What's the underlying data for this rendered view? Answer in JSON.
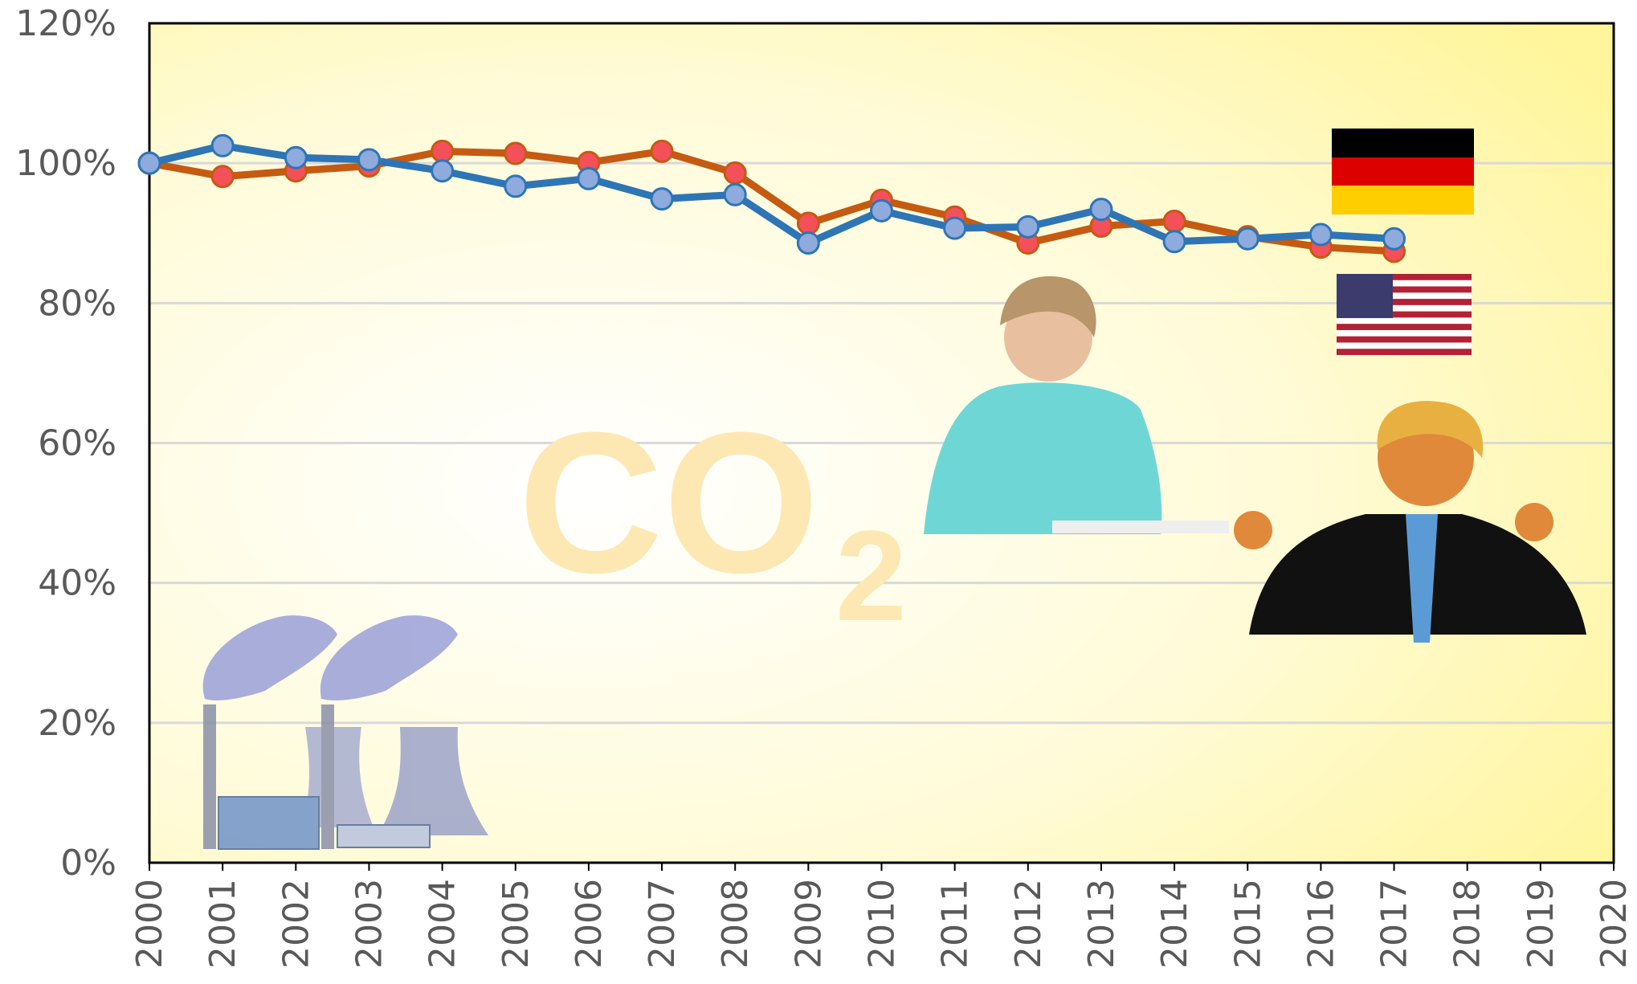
{
  "chart_data": {
    "type": "line",
    "x": [
      2000,
      2001,
      2002,
      2003,
      2004,
      2005,
      2006,
      2007,
      2008,
      2009,
      2010,
      2011,
      2012,
      2013,
      2014,
      2015,
      2016,
      2017
    ],
    "series": [
      {
        "color": "#c55a11",
        "marker_color": "#f4505a",
        "values": [
          100,
          98.1,
          98.9,
          99.6,
          101.7,
          101.4,
          100.1,
          101.7,
          98.6,
          91.4,
          94.7,
          92.3,
          88.6,
          91.0,
          91.7,
          89.5,
          88.0,
          87.4
        ]
      },
      {
        "color": "#2e75b6",
        "marker_color": "#8faadc",
        "values": [
          100,
          102.5,
          100.8,
          100.5,
          98.9,
          96.7,
          97.8,
          94.9,
          95.5,
          88.6,
          93.2,
          90.7,
          90.9,
          93.4,
          88.8,
          89.2,
          89.8,
          89.2
        ]
      }
    ],
    "xlim": [
      2000,
      2020
    ],
    "xticks": [
      2000,
      2001,
      2002,
      2003,
      2004,
      2005,
      2006,
      2007,
      2008,
      2009,
      2010,
      2011,
      2012,
      2013,
      2014,
      2015,
      2016,
      2017,
      2018,
      2019,
      2020
    ],
    "ylim": [
      0,
      120
    ],
    "yticks": [
      {
        "value": 0,
        "label": "0%"
      },
      {
        "value": 20,
        "label": "20%"
      },
      {
        "value": 40,
        "label": "40%"
      },
      {
        "value": 60,
        "label": "60%"
      },
      {
        "value": 80,
        "label": "80%"
      },
      {
        "value": 100,
        "label": "100%"
      },
      {
        "value": 120,
        "label": "120%"
      }
    ],
    "grid": true,
    "watermark": {
      "main": "CO",
      "subscript": "2"
    }
  }
}
